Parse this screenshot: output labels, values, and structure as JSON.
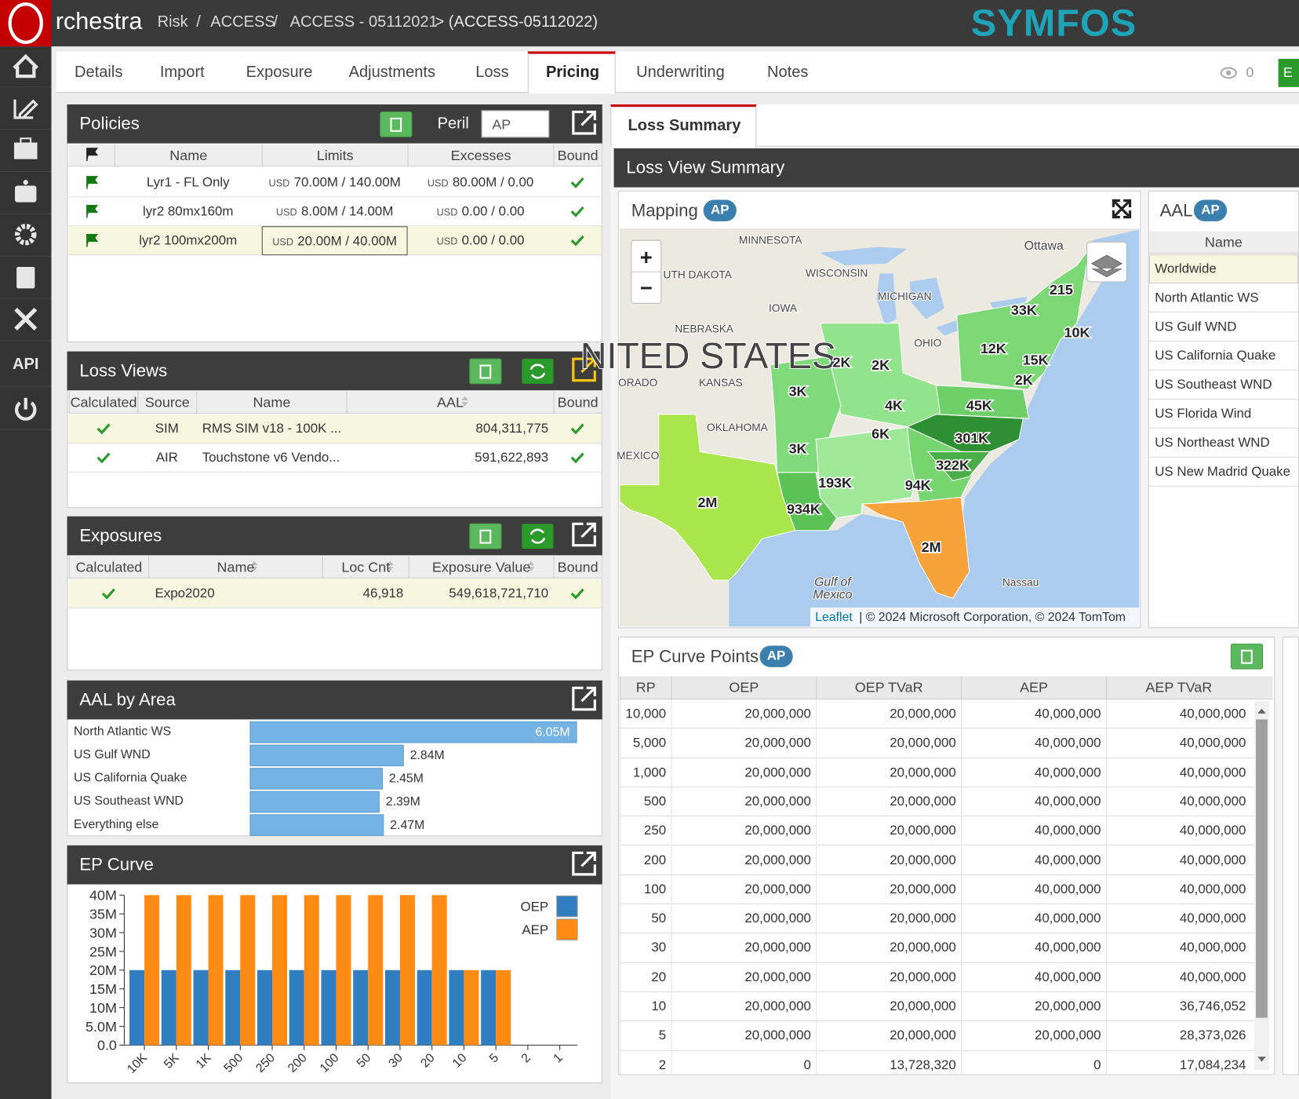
{
  "header": {
    "app_name": "rchestra",
    "breadcrumb": [
      "Risk",
      "ACCESS",
      "ACCESS - 05112021"
    ],
    "separator": "/",
    "current": "> (ACCESS-05112022)",
    "brand": "SYMFOS"
  },
  "sidebar": {
    "api": "API"
  },
  "tabs": {
    "items": [
      "Details",
      "Import",
      "Exposure",
      "Adjustments",
      "Loss",
      "Pricing",
      "Underwriting",
      "Notes"
    ],
    "active": "Pricing",
    "watch_count": "0",
    "action_button": "E"
  },
  "policies": {
    "title": "Policies",
    "peril_label": "Peril",
    "peril_value": "AP",
    "columns": [
      "Name",
      "Limits",
      "Excesses",
      "Bound"
    ],
    "rows": [
      {
        "name": "Lyr1 - FL Only",
        "limits_currency": "USD",
        "limits": "70.00M / 140.00M",
        "excesses_currency": "USD",
        "excesses": "80.00M / 0.00"
      },
      {
        "name": "lyr2 80mx160m",
        "limits_currency": "USD",
        "limits": "8.00M / 14.00M",
        "excesses_currency": "USD",
        "excesses": "0.00 / 0.00"
      },
      {
        "name": "lyr2 100mx200m",
        "limits_currency": "USD",
        "limits": "20.00M / 40.00M",
        "excesses_currency": "USD",
        "excesses": "0.00 / 0.00"
      }
    ]
  },
  "loss_views": {
    "title": "Loss Views",
    "columns": [
      "Calculated",
      "Source",
      "Name",
      "AAL",
      "Bound"
    ],
    "rows": [
      {
        "source": "SIM",
        "name": "RMS SIM v18 - 100K ...",
        "aal": "804,311,775"
      },
      {
        "source": "AIR",
        "name": "Touchstone v6 Vendo...",
        "aal": "591,622,893"
      }
    ]
  },
  "exposures": {
    "title": "Exposures",
    "columns": [
      "Calculated",
      "Name",
      "Loc Cnt",
      "Exposure Value",
      "Bound"
    ],
    "rows": [
      {
        "name": "Expo2020",
        "loc_cnt": "46,918",
        "exposure_value": "549,618,721,710"
      }
    ]
  },
  "chart_data": [
    {
      "type": "bar",
      "orientation": "horizontal",
      "title": "AAL by Area",
      "categories": [
        "North Atlantic WS",
        "US Gulf WND",
        "US California Quake",
        "US Southeast WND",
        "Everything else"
      ],
      "values": [
        6050000,
        2840000,
        2450000,
        2390000,
        2470000
      ],
      "value_labels": [
        "6.05M",
        "2.84M",
        "2.45M",
        "2.39M",
        "2.47M"
      ],
      "color": "#74b3e4",
      "xlim": [
        0,
        6050000
      ]
    },
    {
      "type": "bar",
      "title": "EP Curve",
      "categories": [
        "10K",
        "5K",
        "1K",
        "500",
        "250",
        "200",
        "100",
        "50",
        "30",
        "20",
        "10",
        "5",
        "2",
        "1"
      ],
      "series": [
        {
          "name": "OEP",
          "color": "#2f7ec1",
          "values": [
            20000000,
            20000000,
            20000000,
            20000000,
            20000000,
            20000000,
            20000000,
            20000000,
            20000000,
            20000000,
            20000000,
            20000000,
            0,
            0
          ]
        },
        {
          "name": "AEP",
          "color": "#ff8a14",
          "values": [
            40000000,
            40000000,
            40000000,
            40000000,
            40000000,
            40000000,
            40000000,
            40000000,
            40000000,
            40000000,
            20000000,
            20000000,
            0,
            0
          ]
        }
      ],
      "ylim": [
        0,
        40000000
      ],
      "yticks": [
        {
          "value": 0,
          "label": "0.0"
        },
        {
          "value": 5000000,
          "label": "5.0M"
        },
        {
          "value": 10000000,
          "label": "10M"
        },
        {
          "value": 15000000,
          "label": "15M"
        },
        {
          "value": 20000000,
          "label": "20M"
        },
        {
          "value": 25000000,
          "label": "25M"
        },
        {
          "value": 30000000,
          "label": "30M"
        },
        {
          "value": 35000000,
          "label": "35M"
        },
        {
          "value": 40000000,
          "label": "40M"
        }
      ],
      "legend": "upper right"
    }
  ],
  "loss_summary": {
    "tab": "Loss Summary",
    "title": "Loss View Summary"
  },
  "mapping": {
    "title": "Mapping",
    "badge": "AP",
    "zoom_in": "+",
    "zoom_out": "−",
    "place_labels": [
      "MINNESOTA",
      "UTH DAKOTA",
      "WISCONSIN",
      "MICHIGAN",
      "IOWA",
      "NEBRASKA",
      "OHIO",
      "KANSAS",
      "ORADO",
      "OKLAHOMA",
      "MEXICO",
      "Ottawa",
      "Nassau",
      "NITED STATES",
      "Gulf of",
      "Mexico"
    ],
    "region_labels": [
      "215",
      "33K",
      "10K",
      "12K",
      "15K",
      "2K",
      "2K",
      "2K",
      "3K",
      "4K",
      "45K",
      "6K",
      "301K",
      "3K",
      "322K",
      "193K",
      "94K",
      "2M",
      "934K",
      "2M"
    ],
    "attribution_link": "Leaflet",
    "attribution": "| © 2024 Microsoft Corporation, © 2024 TomTom"
  },
  "aal_panel": {
    "title": "AAL",
    "badge": "AP",
    "column": "Name",
    "items": [
      "Worldwide",
      "North Atlantic WS",
      "US Gulf WND",
      "US California Quake",
      "US Southeast WND",
      "US Florida Wind",
      "US Northeast WND",
      "US New Madrid Quake"
    ]
  },
  "ep_curve_points": {
    "title": "EP Curve Points",
    "badge": "AP",
    "columns": [
      "RP",
      "OEP",
      "OEP TVaR",
      "AEP",
      "AEP TVaR"
    ],
    "rows": [
      [
        "10,000",
        "20,000,000",
        "20,000,000",
        "40,000,000",
        "40,000,000"
      ],
      [
        "5,000",
        "20,000,000",
        "20,000,000",
        "40,000,000",
        "40,000,000"
      ],
      [
        "1,000",
        "20,000,000",
        "20,000,000",
        "40,000,000",
        "40,000,000"
      ],
      [
        "500",
        "20,000,000",
        "20,000,000",
        "40,000,000",
        "40,000,000"
      ],
      [
        "250",
        "20,000,000",
        "20,000,000",
        "40,000,000",
        "40,000,000"
      ],
      [
        "200",
        "20,000,000",
        "20,000,000",
        "40,000,000",
        "40,000,000"
      ],
      [
        "100",
        "20,000,000",
        "20,000,000",
        "40,000,000",
        "40,000,000"
      ],
      [
        "50",
        "20,000,000",
        "20,000,000",
        "40,000,000",
        "40,000,000"
      ],
      [
        "30",
        "20,000,000",
        "20,000,000",
        "40,000,000",
        "40,000,000"
      ],
      [
        "20",
        "20,000,000",
        "20,000,000",
        "40,000,000",
        "40,000,000"
      ],
      [
        "10",
        "20,000,000",
        "20,000,000",
        "20,000,000",
        "36,746,052"
      ],
      [
        "5",
        "20,000,000",
        "20,000,000",
        "20,000,000",
        "28,373,026"
      ],
      [
        "2",
        "0",
        "13,728,320",
        "0",
        "17,084,234"
      ]
    ]
  }
}
